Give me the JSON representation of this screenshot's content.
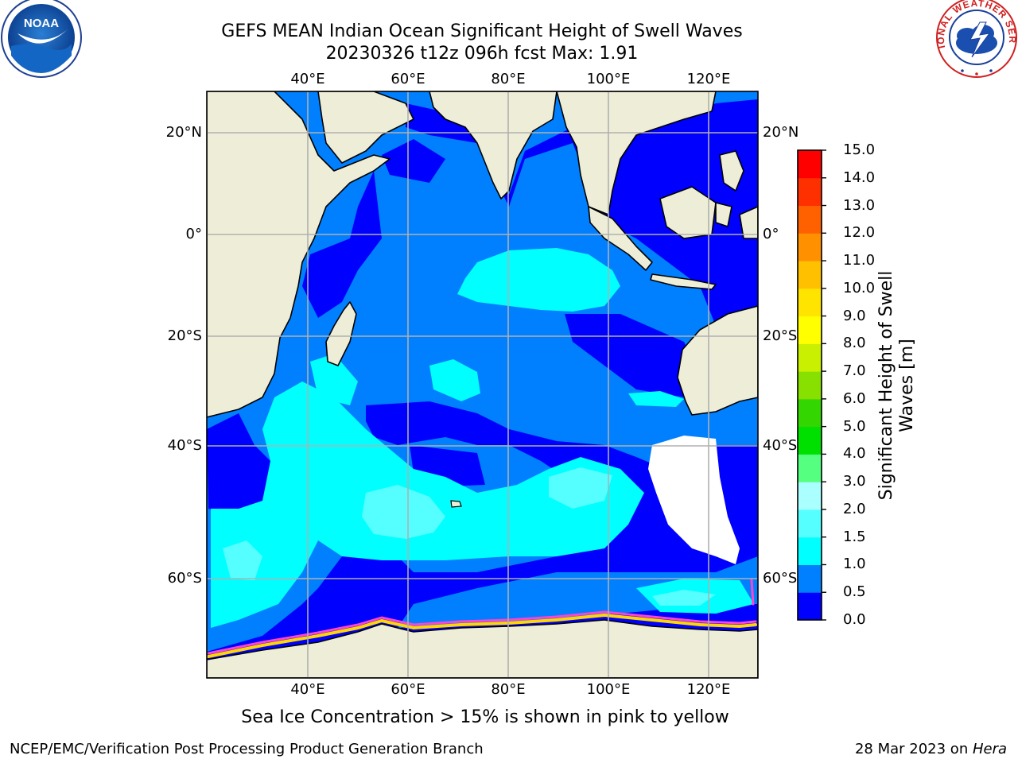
{
  "title_line1": "GEFS MEAN Indian Ocean Significant Height of Swell Waves",
  "title_line2": "20230326 t12z 096h fcst   Max: 1.91",
  "note": "Sea Ice Concentration > 15% is shown in pink to yellow",
  "footer_left": "NCEP/EMC/Verification Post Processing Product Generation Branch",
  "footer_date": "28 Mar 2023 on ",
  "footer_machine": "Hera",
  "logos": {
    "noaa": "NOAA",
    "nws": "NATIONAL WEATHER SERVICE"
  },
  "lon_labels": [
    "40°E",
    "60°E",
    "80°E",
    "100°E",
    "120°E"
  ],
  "lat_labels": [
    "20°N",
    "0°",
    "20°S",
    "40°S",
    "60°S"
  ],
  "colorbar": {
    "title_line1": "Significant Height of Swell",
    "title_line2": "Waves [m]",
    "ticks": [
      "0.0",
      "0.5",
      "1.0",
      "1.5",
      "2.0",
      "3.0",
      "4.0",
      "5.0",
      "6.0",
      "7.0",
      "8.0",
      "9.0",
      "10.0",
      "11.0",
      "12.0",
      "13.0",
      "14.0",
      "15.0"
    ],
    "colors": [
      "#0000ff",
      "#0080ff",
      "#00ffff",
      "#55ffff",
      "#aaffff",
      "#55ff80",
      "#00e000",
      "#33d600",
      "#88e000",
      "#c8f000",
      "#ffff00",
      "#ffe400",
      "#ffc000",
      "#ff9000",
      "#ff6000",
      "#ff3000",
      "#ff0000"
    ]
  },
  "palette": {
    "ocean_deep": "#0000ff",
    "ocean_mid": "#0080ff",
    "ocean_light": "#00ffff",
    "ocean_lighter": "#55ffff",
    "land": "#eeeed8",
    "ice_pink": "#ff44cc",
    "ice_yellow": "#ffd700"
  }
}
